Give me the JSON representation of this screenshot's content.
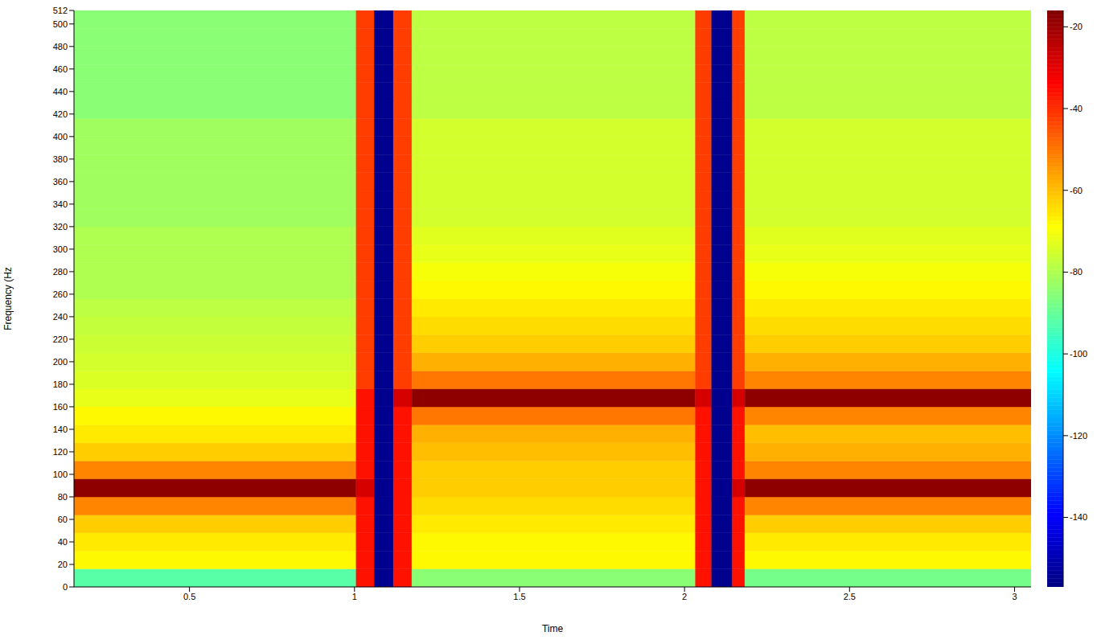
{
  "chart_data": {
    "type": "heatmap",
    "xlabel": "Time",
    "ylabel": "Frequency (Hz",
    "xlim": [
      0.15,
      3.05
    ],
    "xticks": [
      0.5,
      1,
      1.5,
      2,
      2.5,
      3
    ],
    "ylim": [
      0,
      512
    ],
    "yticks": [
      0,
      20,
      40,
      60,
      80,
      100,
      120,
      140,
      160,
      180,
      200,
      220,
      240,
      260,
      280,
      300,
      320,
      340,
      360,
      380,
      400,
      420,
      440,
      460,
      480,
      500,
      512
    ],
    "x_edges": [
      0.15,
      1.005,
      1.06,
      1.118,
      1.174,
      2.033,
      2.082,
      2.145,
      2.183,
      3.05
    ],
    "y_edges": [
      0,
      16,
      32,
      48,
      64,
      80,
      96,
      112,
      128,
      144,
      160,
      176,
      192,
      208,
      224,
      240,
      256,
      272,
      288,
      304,
      320,
      336,
      352,
      368,
      384,
      400,
      416,
      432,
      448,
      464,
      480,
      496,
      512
    ],
    "cells": [
      [
        -92,
        -36,
        -155,
        -36,
        -85,
        -36,
        -155,
        -36,
        -88
      ],
      [
        -68,
        -36,
        -155,
        -36,
        -68,
        -36,
        -155,
        -36,
        -68
      ],
      [
        -66,
        -36,
        -155,
        -36,
        -68,
        -36,
        -155,
        -36,
        -66
      ],
      [
        -62,
        -36,
        -155,
        -36,
        -66,
        -36,
        -155,
        -36,
        -62
      ],
      [
        -52,
        -36,
        -155,
        -36,
        -64,
        -36,
        -155,
        -36,
        -52
      ],
      [
        -18,
        -28,
        -155,
        -36,
        -62,
        -36,
        -155,
        -28,
        -18
      ],
      [
        -52,
        -36,
        -155,
        -36,
        -62,
        -36,
        -155,
        -36,
        -52
      ],
      [
        -62,
        -36,
        -155,
        -36,
        -60,
        -36,
        -155,
        -36,
        -58
      ],
      [
        -66,
        -36,
        -155,
        -36,
        -58,
        -36,
        -155,
        -36,
        -60
      ],
      [
        -68,
        -36,
        -155,
        -36,
        -50,
        -36,
        -155,
        -36,
        -52
      ],
      [
        -72,
        -36,
        -155,
        -28,
        -18,
        -28,
        -155,
        -28,
        -18
      ],
      [
        -74,
        -42,
        -155,
        -42,
        -50,
        -42,
        -155,
        -42,
        -52
      ],
      [
        -75,
        -42,
        -155,
        -42,
        -58,
        -42,
        -155,
        -42,
        -58
      ],
      [
        -76,
        -42,
        -155,
        -42,
        -62,
        -42,
        -155,
        -42,
        -62
      ],
      [
        -77,
        -42,
        -155,
        -42,
        -64,
        -42,
        -155,
        -42,
        -64
      ],
      [
        -78,
        -42,
        -155,
        -42,
        -66,
        -42,
        -155,
        -42,
        -66
      ],
      [
        -80,
        -42,
        -155,
        -42,
        -68,
        -42,
        -155,
        -42,
        -68
      ],
      [
        -80,
        -42,
        -155,
        -42,
        -70,
        -42,
        -155,
        -42,
        -70
      ],
      [
        -80,
        -42,
        -155,
        -42,
        -72,
        -42,
        -155,
        -42,
        -72
      ],
      [
        -80,
        -42,
        -155,
        -42,
        -73,
        -42,
        -155,
        -42,
        -73
      ],
      [
        -82,
        -42,
        -155,
        -42,
        -75,
        -42,
        -155,
        -42,
        -75
      ],
      [
        -82,
        -42,
        -155,
        -42,
        -75,
        -42,
        -155,
        -42,
        -75
      ],
      [
        -82,
        -42,
        -155,
        -42,
        -75,
        -42,
        -155,
        -42,
        -75
      ],
      [
        -82,
        -42,
        -155,
        -42,
        -75,
        -42,
        -155,
        -42,
        -75
      ],
      [
        -82,
        -42,
        -155,
        -42,
        -75,
        -42,
        -155,
        -42,
        -75
      ],
      [
        -82,
        -42,
        -155,
        -42,
        -75,
        -42,
        -155,
        -42,
        -75
      ],
      [
        -85,
        -42,
        -155,
        -42,
        -78,
        -42,
        -155,
        -42,
        -78
      ],
      [
        -85,
        -42,
        -155,
        -42,
        -78,
        -42,
        -155,
        -42,
        -78
      ],
      [
        -85,
        -42,
        -155,
        -42,
        -78,
        -42,
        -155,
        -42,
        -78
      ],
      [
        -85,
        -42,
        -155,
        -42,
        -78,
        -42,
        -155,
        -42,
        -78
      ],
      [
        -85,
        -42,
        -155,
        -42,
        -78,
        -42,
        -155,
        -42,
        -78
      ],
      [
        -85,
        -42,
        -155,
        -42,
        -78,
        -42,
        -155,
        -42,
        -78
      ]
    ],
    "colorbar": {
      "range": [
        -157,
        -16
      ],
      "ticks": [
        -140,
        -120,
        -100,
        -80,
        -60,
        -40,
        -20
      ]
    }
  }
}
